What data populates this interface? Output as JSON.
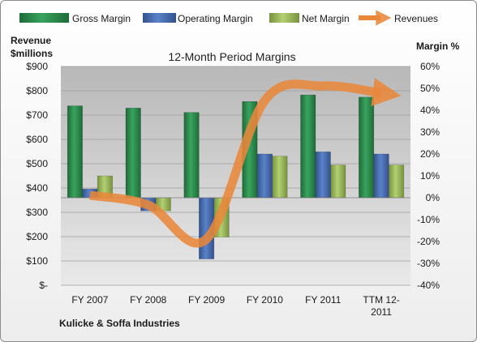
{
  "chart_data": {
    "type": "bar",
    "title": "12-Month Period Margins",
    "categories": [
      "FY 2007",
      "FY 2008",
      "FY 2009",
      "FY 2010",
      "FY 2011",
      "TTM 12-2011"
    ],
    "category_labels": [
      [
        "FY 2007"
      ],
      [
        "FY 2008"
      ],
      [
        "FY 2009"
      ],
      [
        "FY 2010"
      ],
      [
        "FY 2011"
      ],
      [
        "TTM 12-",
        "2011"
      ]
    ],
    "y_left": {
      "label": [
        "Revenue",
        "$millions"
      ],
      "ylim": [
        0,
        900
      ],
      "ticks": [
        0,
        100,
        200,
        300,
        400,
        500,
        600,
        700,
        800,
        900
      ],
      "tick_labels": [
        "$-",
        "$100",
        "$200",
        "$300",
        "$400",
        "$500",
        "$600",
        "$700",
        "$800",
        "$900"
      ]
    },
    "y_right": {
      "label": "Margin %",
      "ylim": [
        -40,
        60
      ],
      "ticks": [
        -40,
        -30,
        -20,
        -10,
        0,
        10,
        20,
        30,
        40,
        50,
        60
      ],
      "tick_labels": [
        "-40%",
        "-30%",
        "-20%",
        "-10%",
        "0%",
        "10%",
        "20%",
        "30%",
        "40%",
        "50%",
        "60%"
      ]
    },
    "series": [
      {
        "name": "Gross Margin",
        "kind": "bar",
        "axis": "right",
        "color": "#2e8b4e",
        "values": [
          42,
          41,
          39,
          44,
          47,
          46
        ]
      },
      {
        "name": "Operating Margin",
        "kind": "bar",
        "axis": "right",
        "color": "#4a6fb5",
        "values": [
          4,
          -6,
          -28,
          20,
          21,
          20
        ]
      },
      {
        "name": "Net Margin",
        "kind": "bar",
        "axis": "right",
        "color": "#9bbb59",
        "values": [
          10,
          -6,
          -18,
          19,
          15,
          15
        ]
      },
      {
        "name": "Revenues",
        "kind": "line",
        "axis": "left",
        "color": "#e8873a",
        "values": [
          370,
          330,
          190,
          760,
          820,
          790
        ]
      }
    ],
    "legend_position": "top",
    "grid": true
  },
  "footer": {
    "company": "Kulicke & Soffa Industries"
  }
}
